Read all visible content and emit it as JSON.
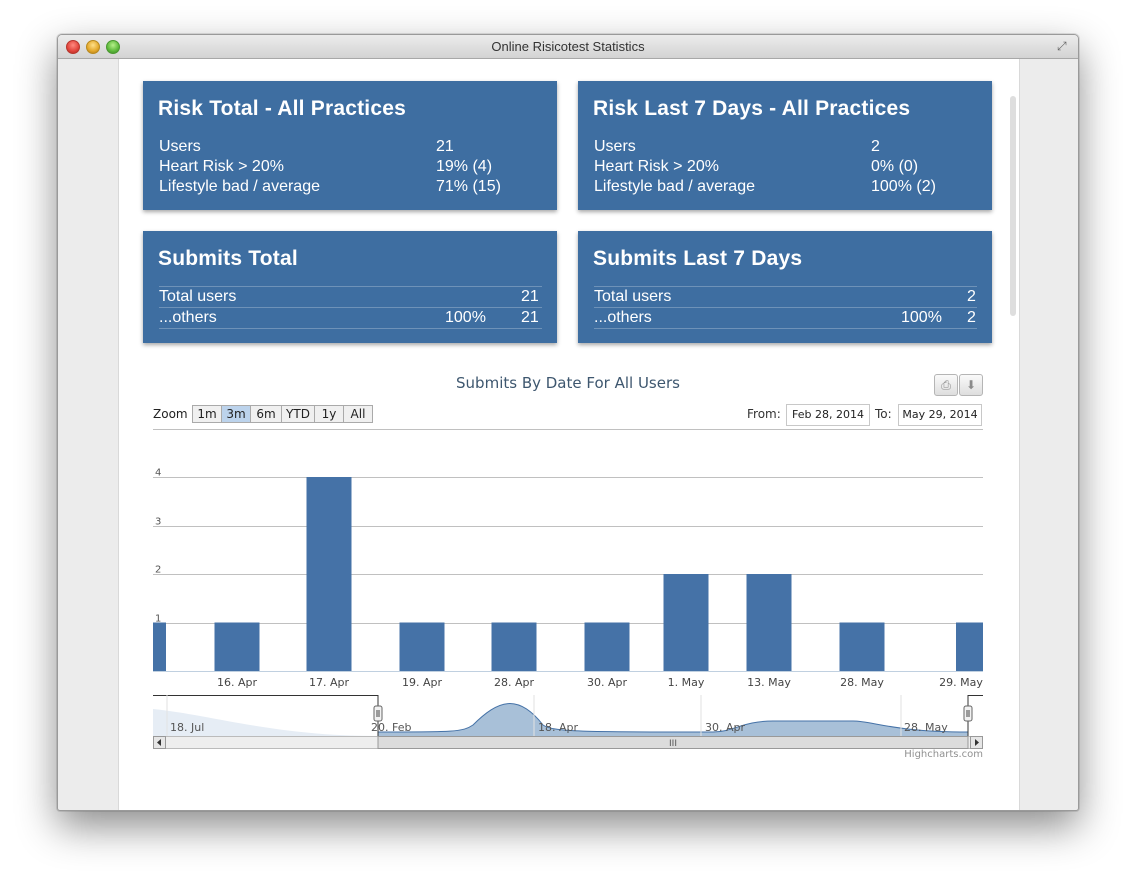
{
  "window": {
    "title": "Online Risicotest Statistics"
  },
  "panels": {
    "risk_total": {
      "title": "Risk Total - All Practices",
      "rows": [
        {
          "label": "Users",
          "value": "21"
        },
        {
          "label": "Heart Risk > 20%",
          "value": "19% (4)"
        },
        {
          "label": "Lifestyle bad / average",
          "value": "71% (15)"
        }
      ]
    },
    "risk_7days": {
      "title": "Risk Last 7 Days - All Practices",
      "rows": [
        {
          "label": "Users",
          "value": "2"
        },
        {
          "label": "Heart Risk > 20%",
          "value": "0% (0)"
        },
        {
          "label": "Lifestyle bad / average",
          "value": "100% (2)"
        }
      ]
    },
    "submits_total": {
      "title": "Submits Total",
      "rows": [
        {
          "label": "Total users",
          "pct": "",
          "value": "21"
        },
        {
          "label": "...others",
          "pct": "100%",
          "value": "21"
        }
      ]
    },
    "submits_7days": {
      "title": "Submits Last 7 Days",
      "rows": [
        {
          "label": "Total users",
          "pct": "",
          "value": "2"
        },
        {
          "label": "...others",
          "pct": "100%",
          "value": "2"
        }
      ]
    }
  },
  "chart": {
    "title": "Submits By Date For All Users",
    "zoom_label": "Zoom",
    "zoom_buttons": [
      "1m",
      "3m",
      "6m",
      "YTD",
      "1y",
      "All"
    ],
    "zoom_active": "3m",
    "from_label": "From:",
    "to_label": "To:",
    "from_date": "Feb 28, 2014",
    "to_date": "May 29, 2014",
    "credits": "Highcharts.com",
    "print_icon": "print-icon",
    "export_icon": "download-icon",
    "navigator_labels": [
      "18. Jul",
      "20. Feb",
      "18. Apr",
      "30. Apr",
      "28. May"
    ],
    "colors": {
      "bar": "#4572a7",
      "title": "#3e576f"
    }
  },
  "chart_data": {
    "type": "bar",
    "title": "Submits By Date For All Users",
    "categories": [
      "",
      "16. Apr",
      "17. Apr",
      "19. Apr",
      "28. Apr",
      "30. Apr",
      "1. May",
      "13. May",
      "28. May",
      "29. May"
    ],
    "values": [
      1,
      1,
      4,
      1,
      1,
      1,
      2,
      2,
      1,
      1
    ],
    "y_ticks": [
      "1",
      "2",
      "3",
      "4"
    ],
    "ylim": [
      0,
      4
    ],
    "xlabel": "",
    "ylabel": "",
    "grid": true
  }
}
